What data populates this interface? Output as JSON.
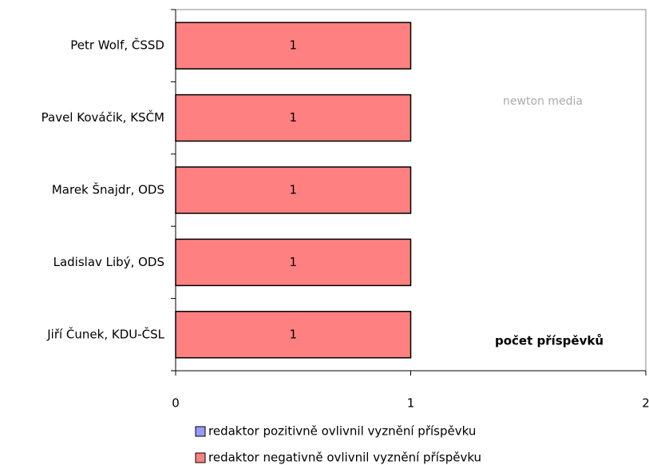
{
  "chart_data": {
    "type": "bar",
    "orientation": "horizontal",
    "stacked": true,
    "categories": [
      "Petr Wolf, ČSSD",
      "Pavel Kováčik, KSČM",
      "Marek Šnajdr, ODS",
      "Ladislav Libý, ODS",
      "Jiří Čunek, KDU-ČSL"
    ],
    "series": [
      {
        "name": "redaktor pozitivně ovlivnil vyznění příspěvku",
        "color": "#9999ff",
        "values": [
          0,
          0,
          0,
          0,
          0
        ]
      },
      {
        "name": "redaktor negativně ovlivnil vyznění příspěvku",
        "color": "#ff8080",
        "values": [
          1,
          1,
          1,
          1,
          1
        ]
      }
    ],
    "xlim": [
      0,
      2
    ],
    "xticks": [
      0,
      1,
      2
    ],
    "x_label": "počet příspěvků",
    "watermark": "newton media",
    "legend": "bottom"
  }
}
